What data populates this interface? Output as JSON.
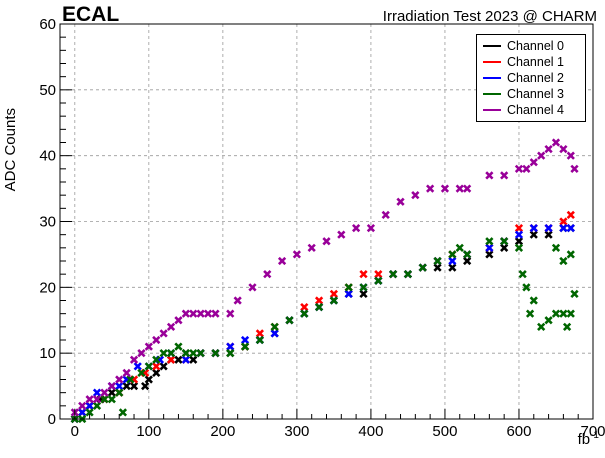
{
  "header": {
    "left_title": "ECAL",
    "right_title": "Irradiation Test 2023 @ CHARM"
  },
  "chart_data": {
    "type": "scatter",
    "title": "Irradiation Test 2023 @ CHARM",
    "subtitle": "ECAL",
    "xlabel": "fb",
    "xlabel_exponent": "-1",
    "ylabel": "ADC Counts",
    "xlim": [
      -20,
      700
    ],
    "ylim": [
      0,
      60
    ],
    "xticks": [
      0,
      100,
      200,
      300,
      400,
      500,
      600,
      700
    ],
    "yticks": [
      0,
      10,
      20,
      30,
      40,
      50,
      60
    ],
    "grid": true,
    "legend_position": "top-right",
    "marker": "x",
    "series": [
      {
        "name": "Channel 0",
        "color": "#000000",
        "points": [
          [
            0,
            0
          ],
          [
            10,
            1
          ],
          [
            20,
            2
          ],
          [
            35,
            3
          ],
          [
            50,
            4
          ],
          [
            60,
            4
          ],
          [
            70,
            5
          ],
          [
            80,
            5
          ],
          [
            95,
            5
          ],
          [
            100,
            6
          ],
          [
            110,
            7
          ],
          [
            120,
            8
          ],
          [
            130,
            9
          ],
          [
            140,
            9
          ],
          [
            150,
            10
          ],
          [
            160,
            9
          ],
          [
            170,
            10
          ],
          [
            190,
            10
          ],
          [
            210,
            10
          ],
          [
            230,
            11
          ],
          [
            250,
            12
          ],
          [
            270,
            13
          ],
          [
            290,
            15
          ],
          [
            310,
            16
          ],
          [
            330,
            17
          ],
          [
            350,
            18
          ],
          [
            370,
            19
          ],
          [
            390,
            19
          ],
          [
            410,
            21
          ],
          [
            430,
            22
          ],
          [
            450,
            22
          ],
          [
            470,
            23
          ],
          [
            490,
            23
          ],
          [
            510,
            23
          ],
          [
            530,
            24
          ],
          [
            560,
            25
          ],
          [
            580,
            26
          ],
          [
            600,
            27
          ],
          [
            620,
            28
          ],
          [
            640,
            28
          ],
          [
            660,
            29
          ],
          [
            670,
            29
          ]
        ]
      },
      {
        "name": "Channel 1",
        "color": "#ff0000",
        "points": [
          [
            0,
            0
          ],
          [
            10,
            1
          ],
          [
            20,
            2
          ],
          [
            40,
            3
          ],
          [
            60,
            4
          ],
          [
            80,
            6
          ],
          [
            95,
            7
          ],
          [
            110,
            8
          ],
          [
            130,
            9
          ],
          [
            150,
            9
          ],
          [
            170,
            10
          ],
          [
            190,
            10
          ],
          [
            210,
            11
          ],
          [
            230,
            11
          ],
          [
            250,
            13
          ],
          [
            270,
            14
          ],
          [
            290,
            15
          ],
          [
            310,
            17
          ],
          [
            330,
            18
          ],
          [
            350,
            19
          ],
          [
            370,
            20
          ],
          [
            390,
            22
          ],
          [
            410,
            22
          ],
          [
            430,
            22
          ],
          [
            450,
            22
          ],
          [
            470,
            23
          ],
          [
            490,
            24
          ],
          [
            510,
            25
          ],
          [
            530,
            25
          ],
          [
            560,
            26
          ],
          [
            580,
            27
          ],
          [
            600,
            29
          ],
          [
            620,
            29
          ],
          [
            640,
            29
          ],
          [
            660,
            30
          ],
          [
            670,
            31
          ]
        ]
      },
      {
        "name": "Channel 2",
        "color": "#0000ff",
        "points": [
          [
            0,
            0
          ],
          [
            10,
            1
          ],
          [
            20,
            2
          ],
          [
            30,
            4
          ],
          [
            50,
            5
          ],
          [
            60,
            5
          ],
          [
            70,
            6
          ],
          [
            85,
            8
          ],
          [
            100,
            8
          ],
          [
            115,
            9
          ],
          [
            130,
            10
          ],
          [
            150,
            9
          ],
          [
            170,
            10
          ],
          [
            190,
            10
          ],
          [
            210,
            11
          ],
          [
            230,
            12
          ],
          [
            250,
            12
          ],
          [
            270,
            13
          ],
          [
            290,
            15
          ],
          [
            310,
            16
          ],
          [
            330,
            17
          ],
          [
            350,
            18
          ],
          [
            370,
            19
          ],
          [
            390,
            20
          ],
          [
            410,
            21
          ],
          [
            430,
            22
          ],
          [
            450,
            22
          ],
          [
            470,
            23
          ],
          [
            490,
            24
          ],
          [
            510,
            24
          ],
          [
            530,
            25
          ],
          [
            560,
            26
          ],
          [
            580,
            27
          ],
          [
            600,
            28
          ],
          [
            620,
            29
          ],
          [
            640,
            29
          ],
          [
            660,
            29
          ],
          [
            670,
            29
          ]
        ]
      },
      {
        "name": "Channel 3",
        "color": "#006600",
        "points": [
          [
            0,
            0
          ],
          [
            10,
            0
          ],
          [
            20,
            1
          ],
          [
            30,
            2
          ],
          [
            40,
            3
          ],
          [
            50,
            3
          ],
          [
            60,
            4
          ],
          [
            65,
            1
          ],
          [
            75,
            6
          ],
          [
            90,
            7
          ],
          [
            100,
            8
          ],
          [
            110,
            9
          ],
          [
            120,
            10
          ],
          [
            130,
            10
          ],
          [
            140,
            11
          ],
          [
            150,
            10
          ],
          [
            160,
            10
          ],
          [
            170,
            10
          ],
          [
            190,
            10
          ],
          [
            210,
            10
          ],
          [
            230,
            11
          ],
          [
            250,
            12
          ],
          [
            270,
            14
          ],
          [
            290,
            15
          ],
          [
            310,
            16
          ],
          [
            330,
            17
          ],
          [
            350,
            18
          ],
          [
            370,
            20
          ],
          [
            390,
            20
          ],
          [
            410,
            21
          ],
          [
            430,
            22
          ],
          [
            450,
            22
          ],
          [
            470,
            23
          ],
          [
            490,
            24
          ],
          [
            510,
            25
          ],
          [
            520,
            26
          ],
          [
            530,
            25
          ],
          [
            560,
            27
          ],
          [
            580,
            27
          ],
          [
            600,
            26
          ],
          [
            605,
            22
          ],
          [
            610,
            20
          ],
          [
            620,
            18
          ],
          [
            615,
            16
          ],
          [
            630,
            14
          ],
          [
            640,
            15
          ],
          [
            650,
            16
          ],
          [
            660,
            16
          ],
          [
            665,
            14
          ],
          [
            670,
            16
          ],
          [
            675,
            19
          ],
          [
            660,
            24
          ],
          [
            670,
            25
          ],
          [
            650,
            26
          ]
        ]
      },
      {
        "name": "Channel 4",
        "color": "#990099",
        "points": [
          [
            0,
            1
          ],
          [
            10,
            2
          ],
          [
            20,
            3
          ],
          [
            30,
            3
          ],
          [
            40,
            4
          ],
          [
            50,
            5
          ],
          [
            60,
            6
          ],
          [
            70,
            7
          ],
          [
            80,
            9
          ],
          [
            90,
            10
          ],
          [
            100,
            11
          ],
          [
            110,
            12
          ],
          [
            120,
            13
          ],
          [
            130,
            14
          ],
          [
            140,
            15
          ],
          [
            150,
            16
          ],
          [
            160,
            16
          ],
          [
            170,
            16
          ],
          [
            180,
            16
          ],
          [
            190,
            16
          ],
          [
            210,
            16
          ],
          [
            220,
            18
          ],
          [
            240,
            20
          ],
          [
            260,
            22
          ],
          [
            280,
            24
          ],
          [
            300,
            25
          ],
          [
            320,
            26
          ],
          [
            340,
            27
          ],
          [
            360,
            28
          ],
          [
            380,
            29
          ],
          [
            400,
            29
          ],
          [
            420,
            31
          ],
          [
            440,
            33
          ],
          [
            460,
            34
          ],
          [
            480,
            35
          ],
          [
            500,
            35
          ],
          [
            520,
            35
          ],
          [
            530,
            35
          ],
          [
            560,
            37
          ],
          [
            580,
            37
          ],
          [
            600,
            38
          ],
          [
            610,
            38
          ],
          [
            620,
            39
          ],
          [
            630,
            40
          ],
          [
            640,
            41
          ],
          [
            650,
            42
          ],
          [
            660,
            41
          ],
          [
            670,
            40
          ],
          [
            675,
            38
          ]
        ]
      }
    ]
  }
}
